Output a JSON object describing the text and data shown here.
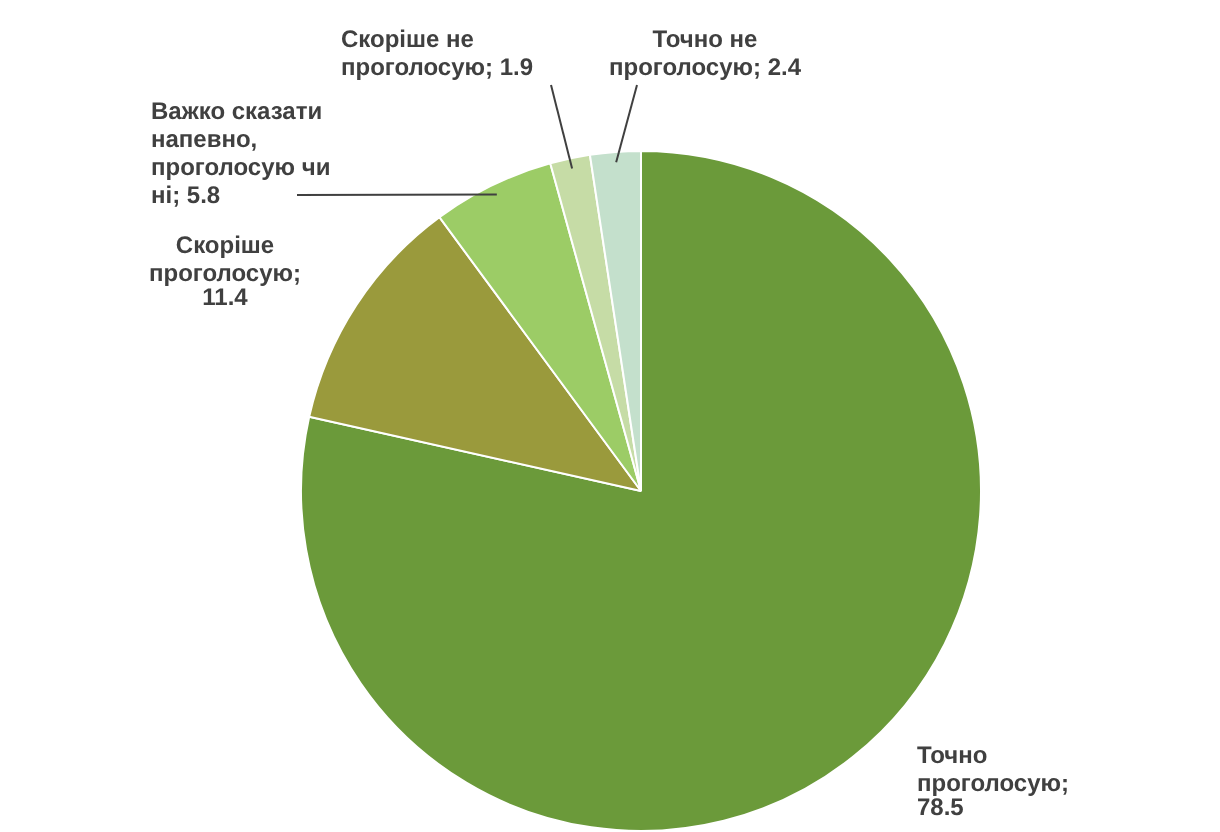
{
  "chart_data": {
    "type": "pie",
    "categories": [
      "Точно проголосую",
      "Скоріше проголосую",
      "Важко сказати напевно, проголосую чи ні",
      "Скоріше не проголосую",
      "Точно не проголосую"
    ],
    "values": [
      78.5,
      11.4,
      5.8,
      1.9,
      2.4
    ],
    "colors": [
      "#6b9a3a",
      "#9a9a3c",
      "#9ccc66",
      "#c6dca6",
      "#c4e0cc"
    ],
    "value_labels": [
      "; 78.5",
      "; 11.4",
      "; 5.8",
      "; 1.9",
      "; 2.4"
    ],
    "legend": false
  }
}
